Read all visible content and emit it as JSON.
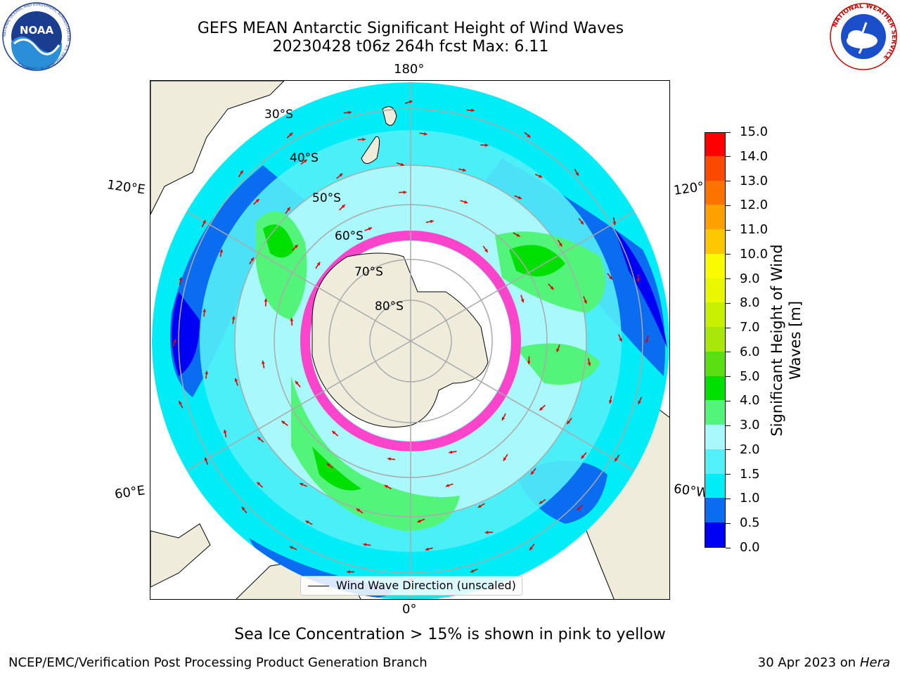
{
  "title_line1": "GEFS MEAN Antarctic Significant Height of Wind Waves",
  "title_line2": "20230428 t06z 264h fcst   Max: 6.11",
  "lon_labels": {
    "top": "180°",
    "bottom": "0°",
    "left_upper": "120°E",
    "left_lower": "60°E",
    "right_upper": "120°",
    "right_lower": "60°W"
  },
  "lat_labels": [
    "30°S",
    "40°S",
    "50°S",
    "60°S",
    "70°S",
    "80°S"
  ],
  "colorbar": {
    "label": "Significant Height of Wind Waves [m]",
    "label_line1": "Significant Height of Wind",
    "label_line2": "Waves [m]",
    "ticks": [
      "0.0",
      "0.5",
      "1.0",
      "1.5",
      "2.0",
      "3.0",
      "4.0",
      "5.0",
      "6.0",
      "7.0",
      "8.0",
      "9.0",
      "10.0",
      "11.0",
      "12.0",
      "13.0",
      "14.0",
      "15.0"
    ],
    "colors": [
      "#0000f5",
      "#0a6cf0",
      "#00ecf6",
      "#52f0f8",
      "#a9f8fb",
      "#52f579",
      "#00e000",
      "#5ae012",
      "#a9e60a",
      "#c9f000",
      "#e9f700",
      "#fbfb00",
      "#fec700",
      "#fda000",
      "#fd7300",
      "#fb4a00",
      "#ff0000"
    ]
  },
  "legend": {
    "label": "Wind Wave Direction (unscaled)"
  },
  "footnote": "Sea Ice Concentration > 15% is shown in pink to yellow",
  "credit": "NCEP/EMC/Verification Post Processing Product Generation Branch",
  "date_text": "30 Apr 2023 on ",
  "date_machine": "Hera",
  "logos": {
    "noaa": "NOAA",
    "noaa_ring": "NATIONAL OCEANIC AND ATMOSPHERIC ADMINISTRATION · U.S. DEPARTMENT OF COMMERCE",
    "nws_ring": "NATIONAL WEATHER SERVICE"
  }
}
